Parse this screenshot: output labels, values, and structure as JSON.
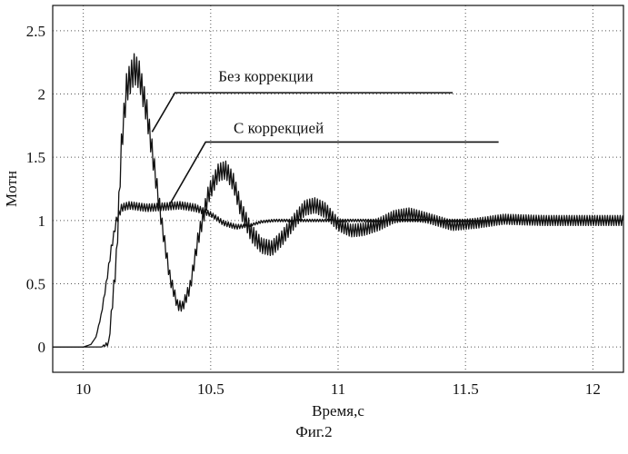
{
  "chart_data": {
    "type": "line",
    "xlabel": "Время,с",
    "ylabel": "Mотн",
    "xlim": [
      9.88,
      12.12
    ],
    "ylim": [
      -0.2,
      2.7
    ],
    "xticks": [
      10,
      10.5,
      11,
      11.5,
      12
    ],
    "xtick_labels": [
      "10",
      "10.5",
      "11",
      "11.5",
      "12"
    ],
    "yticks": [
      0,
      0.5,
      1,
      1.5,
      2,
      2.5
    ],
    "ytick_labels": [
      "0",
      "0.5",
      "1",
      "1.5",
      "2",
      "2.5"
    ],
    "grid": true,
    "grid_style": "dotted",
    "series": [
      {
        "key": "without_correction",
        "x": [
          9.88,
          10.0,
          10.04,
          10.07,
          10.1,
          10.13,
          10.15,
          10.17,
          10.2,
          10.22,
          10.25,
          10.28,
          10.31,
          10.34,
          10.37,
          10.39,
          10.42,
          10.45,
          10.49,
          10.53,
          10.56,
          10.59,
          10.62,
          10.66,
          10.7,
          10.74,
          10.78,
          10.83,
          10.87,
          10.91,
          10.95,
          11.0,
          11.05,
          11.1,
          11.16,
          11.22,
          11.28,
          11.35,
          11.45,
          11.55,
          11.65,
          11.8,
          12.0,
          12.12
        ],
        "y": [
          0,
          0,
          0,
          0,
          0.03,
          0.7,
          1.6,
          2.05,
          2.2,
          2.15,
          1.85,
          1.4,
          0.95,
          0.55,
          0.33,
          0.32,
          0.48,
          0.85,
          1.2,
          1.38,
          1.4,
          1.3,
          1.08,
          0.9,
          0.8,
          0.78,
          0.86,
          1.0,
          1.1,
          1.12,
          1.08,
          0.97,
          0.92,
          0.93,
          0.97,
          1.03,
          1.05,
          1.02,
          0.96,
          0.98,
          1.01,
          1.0,
          1.0,
          1.0
        ],
        "ripple": [
          0,
          0,
          0,
          0,
          0.02,
          0.08,
          0.1,
          0.12,
          0.12,
          0.11,
          0.1,
          0.08,
          0.06,
          0.05,
          0.04,
          0.04,
          0.05,
          0.06,
          0.07,
          0.07,
          0.07,
          0.07,
          0.07,
          0.07,
          0.06,
          0.06,
          0.06,
          0.06,
          0.06,
          0.06,
          0.06,
          0.05,
          0.05,
          0.05,
          0.05,
          0.05,
          0.05,
          0.04,
          0.04,
          0.04,
          0.04,
          0.04,
          0.04,
          0.04
        ]
      },
      {
        "key": "with_correction",
        "x": [
          9.88,
          10.0,
          10.03,
          10.05,
          10.07,
          10.09,
          10.11,
          10.13,
          10.15,
          10.18,
          10.25,
          10.32,
          10.38,
          10.44,
          10.5,
          10.55,
          10.6,
          10.65,
          10.7,
          10.75,
          10.8,
          12.12
        ],
        "y": [
          0,
          0,
          0.02,
          0.08,
          0.25,
          0.5,
          0.78,
          1.0,
          1.1,
          1.12,
          1.1,
          1.11,
          1.12,
          1.1,
          1.05,
          0.98,
          0.95,
          0.96,
          0.99,
          1.0,
          1.0,
          1.0
        ],
        "ripple": [
          0,
          0,
          0,
          0,
          0.01,
          0.02,
          0.03,
          0.03,
          0.03,
          0.03,
          0.03,
          0.03,
          0.03,
          0.03,
          0.02,
          0.02,
          0.02,
          0.01,
          0.01,
          0.01,
          0.01,
          0.01
        ]
      }
    ],
    "annotations": [
      {
        "text": "Без коррекции",
        "target": "without_correction",
        "text_x": 10.53,
        "text_y": 2.1,
        "line_start_x": 10.36,
        "line_start_y": 2.01,
        "line_end_x": 11.45,
        "line_end_y": 2.01,
        "point_x": 10.27,
        "point_y": 1.7
      },
      {
        "text": "С коррекцией",
        "target": "with_correction",
        "text_x": 10.59,
        "text_y": 1.69,
        "line_start_x": 10.48,
        "line_start_y": 1.62,
        "line_end_x": 11.63,
        "line_end_y": 1.62,
        "point_x": 10.34,
        "point_y": 1.13
      }
    ]
  },
  "figure_caption": "Фиг.2"
}
